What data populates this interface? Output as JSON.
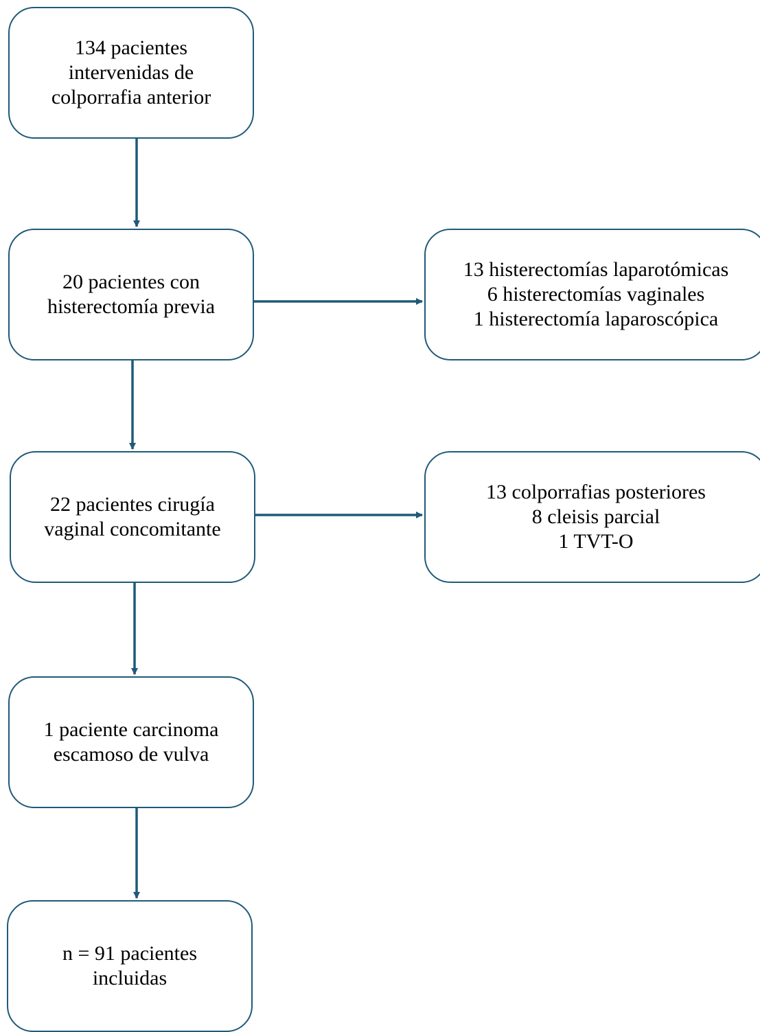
{
  "colors": {
    "border": "#1f5a78",
    "arrow": "#1f5a78",
    "text": "#000000",
    "background": "#ffffff"
  },
  "nodes": {
    "start": {
      "lines": [
        "134 pacientes",
        "intervenidas de",
        "colporrafia anterior"
      ]
    },
    "prior_hysterectomy": {
      "lines": [
        "20 pacientes con",
        "histerectomía previa"
      ]
    },
    "prior_hysterectomy_detail": {
      "lines": [
        "13 histerectomías laparotómicas",
        "6 histerectomías vaginales",
        "1 histerectomía laparoscópica"
      ]
    },
    "concomitant_surgery": {
      "lines": [
        "22 pacientes cirugía",
        "vaginal concomitante"
      ]
    },
    "concomitant_surgery_detail": {
      "lines": [
        "13 colporrafias posteriores",
        "8 cleisis parcial",
        "1 TVT-O"
      ]
    },
    "carcinoma": {
      "lines": [
        "1 paciente carcinoma",
        "escamoso de vulva"
      ]
    },
    "final": {
      "lines": [
        "n = 91 pacientes",
        "incluidas"
      ]
    }
  },
  "edges": [
    {
      "from": "start",
      "to": "prior_hysterectomy"
    },
    {
      "from": "prior_hysterectomy",
      "to": "prior_hysterectomy_detail"
    },
    {
      "from": "prior_hysterectomy",
      "to": "concomitant_surgery"
    },
    {
      "from": "concomitant_surgery",
      "to": "concomitant_surgery_detail"
    },
    {
      "from": "concomitant_surgery",
      "to": "carcinoma"
    },
    {
      "from": "carcinoma",
      "to": "final"
    }
  ]
}
